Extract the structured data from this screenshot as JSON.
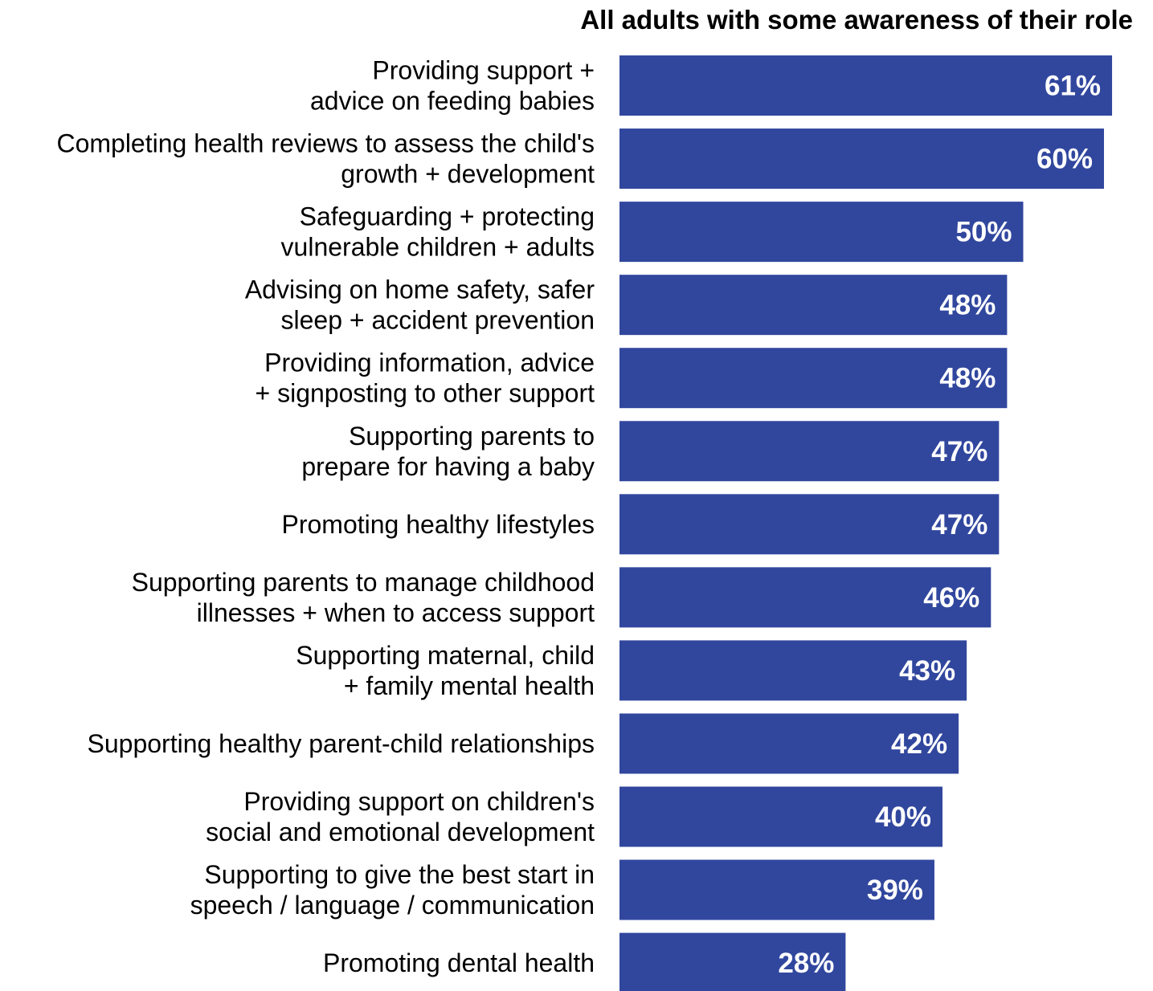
{
  "chart_data": {
    "type": "bar",
    "orientation": "horizontal",
    "title": "All adults with some awareness of their role",
    "xlabel": "",
    "ylabel": "",
    "xlim": [
      0,
      62
    ],
    "grid": false,
    "legend": "none",
    "bar_color": "#31479e",
    "value_label_color": "#ffffff",
    "value_suffix": "%",
    "categories": [
      [
        "Providing support +",
        "advice on feeding babies"
      ],
      [
        "Completing health reviews to assess the child's",
        "growth + development"
      ],
      [
        "Safeguarding + protecting",
        "vulnerable children + adults"
      ],
      [
        "Advising on home safety, safer",
        "sleep + accident prevention"
      ],
      [
        "Providing information, advice",
        "+ signposting to other support"
      ],
      [
        "Supporting parents to",
        "prepare for having a baby"
      ],
      [
        "Promoting healthy lifestyles"
      ],
      [
        "Supporting parents to manage childhood",
        "illnesses + when to access support"
      ],
      [
        "Supporting maternal, child",
        "+ family mental health"
      ],
      [
        "Supporting healthy parent-child relationships"
      ],
      [
        "Providing support on children's",
        "social and emotional development"
      ],
      [
        "Supporting to give the best start in",
        "speech / language / communication"
      ],
      [
        "Promoting dental health"
      ]
    ],
    "values": [
      61,
      60,
      50,
      48,
      48,
      47,
      47,
      46,
      43,
      42,
      40,
      39,
      28
    ],
    "value_labels": [
      "61%",
      "60%",
      "50%",
      "48%",
      "48%",
      "47%",
      "47%",
      "46%",
      "43%",
      "42%",
      "40%",
      "39%",
      "28%"
    ]
  }
}
